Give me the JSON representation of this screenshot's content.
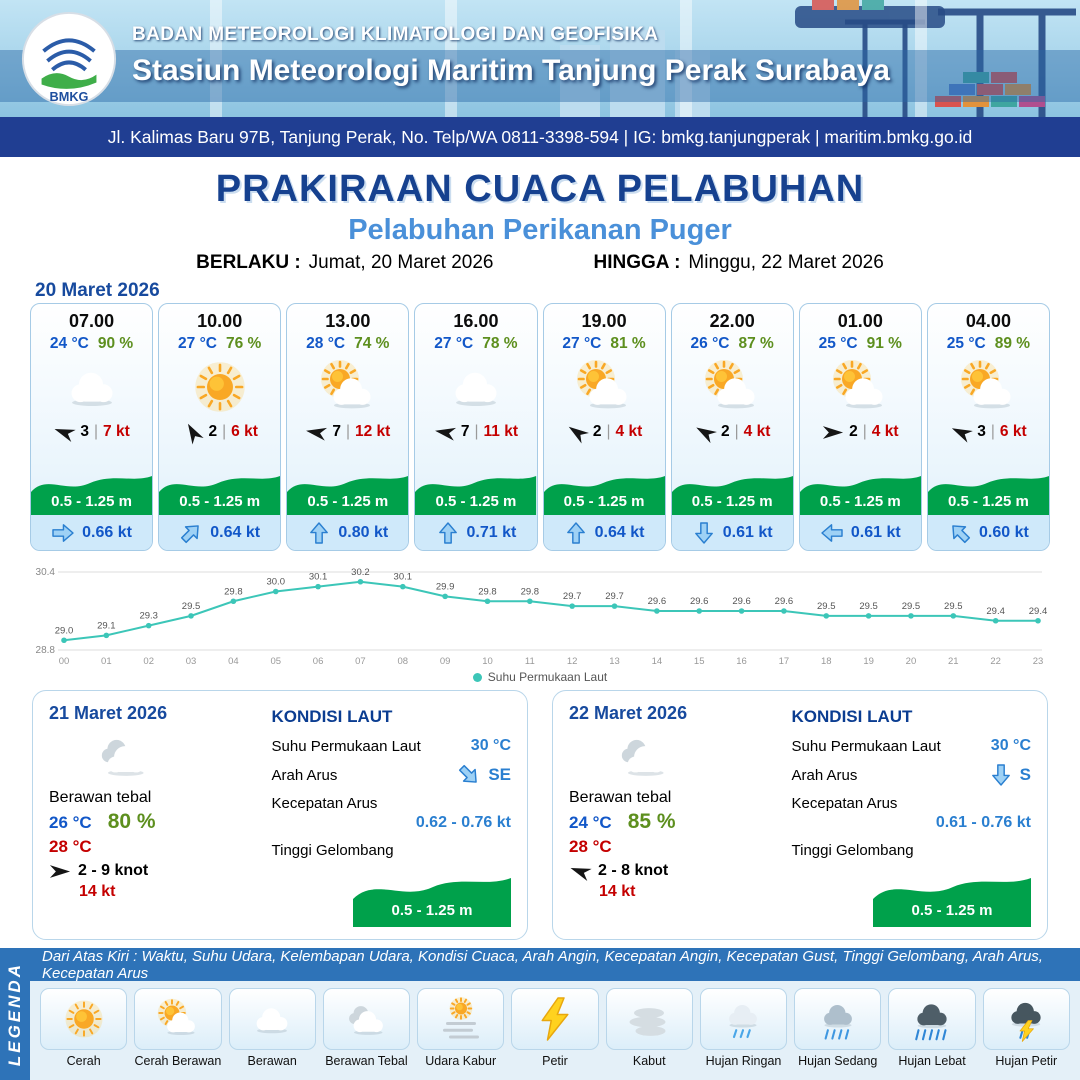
{
  "header": {
    "agency": "BADAN METEOROLOGI KLIMATOLOGI DAN GEOFISIKA",
    "station": "Stasiun Meteorologi Maritim Tanjung Perak Surabaya",
    "address": "Jl. Kalimas Baru 97B, Tanjung Perak, No. Telp/WA 0811-3398-594 | IG: bmkg.tanjungperak | maritim.bmkg.go.id",
    "logo_text": "BMKG"
  },
  "title": {
    "main": "PRAKIRAAN CUACA PELABUHAN",
    "subtitle": "Pelabuhan Perikanan Puger",
    "valid_label": "BERLAKU :",
    "valid_value": "Jumat, 20 Maret 2026",
    "until_label": "HINGGA :",
    "until_value": "Minggu, 22 Maret 2026"
  },
  "forecast": {
    "date": "20 Maret 2026",
    "cards": [
      {
        "time": "07.00",
        "temp": "24 °C",
        "humidity": "90 %",
        "icon": "berawan",
        "wind_dir_deg": 200,
        "wind": "3",
        "sep": "|",
        "gust": "7 kt",
        "wave": "0.5 - 1.25 m",
        "current_dir_deg": 0,
        "current": "0.66 kt"
      },
      {
        "time": "10.00",
        "temp": "27 °C",
        "humidity": "76 %",
        "icon": "cerah",
        "wind_dir_deg": 240,
        "wind": "2",
        "sep": "|",
        "gust": "6 kt",
        "wave": "0.5 - 1.25 m",
        "current_dir_deg": -45,
        "current": "0.64 kt"
      },
      {
        "time": "13.00",
        "temp": "28 °C",
        "humidity": "74 %",
        "icon": "cerah-berawan",
        "wind_dir_deg": 190,
        "wind": "7",
        "sep": "|",
        "gust": "12 kt",
        "wave": "0.5 - 1.25 m",
        "current_dir_deg": -90,
        "current": "0.80 kt"
      },
      {
        "time": "16.00",
        "temp": "27 °C",
        "humidity": "78 %",
        "icon": "berawan",
        "wind_dir_deg": 190,
        "wind": "7",
        "sep": "|",
        "gust": "11 kt",
        "wave": "0.5 - 1.25 m",
        "current_dir_deg": -90,
        "current": "0.71 kt"
      },
      {
        "time": "19.00",
        "temp": "27 °C",
        "humidity": "81 %",
        "icon": "cerah-berawan",
        "wind_dir_deg": 215,
        "wind": "2",
        "sep": "|",
        "gust": "4 kt",
        "wave": "0.5 - 1.25 m",
        "current_dir_deg": -90,
        "current": "0.64 kt"
      },
      {
        "time": "22.00",
        "temp": "26 °C",
        "humidity": "87 %",
        "icon": "cerah-berawan",
        "wind_dir_deg": 210,
        "wind": "2",
        "sep": "|",
        "gust": "4 kt",
        "wave": "0.5 - 1.25 m",
        "current_dir_deg": 90,
        "current": "0.61 kt"
      },
      {
        "time": "01.00",
        "temp": "25 °C",
        "humidity": "91 %",
        "icon": "cerah-berawan",
        "wind_dir_deg": 0,
        "wind": "2",
        "sep": "|",
        "gust": "4 kt",
        "wave": "0.5 - 1.25 m",
        "current_dir_deg": 180,
        "current": "0.61 kt"
      },
      {
        "time": "04.00",
        "temp": "25 °C",
        "humidity": "89 %",
        "icon": "cerah-berawan",
        "wind_dir_deg": 205,
        "wind": "3",
        "sep": "|",
        "gust": "6 kt",
        "wave": "0.5 - 1.25 m",
        "current_dir_deg": -135,
        "current": "0.60 kt"
      }
    ]
  },
  "chart_data": {
    "type": "line",
    "title": "",
    "series_name": "Suhu Permukaan Laut",
    "x": [
      "00",
      "01",
      "02",
      "03",
      "04",
      "05",
      "06",
      "07",
      "08",
      "09",
      "10",
      "11",
      "12",
      "13",
      "14",
      "15",
      "16",
      "17",
      "18",
      "19",
      "20",
      "21",
      "22",
      "23"
    ],
    "values": [
      29.0,
      29.1,
      29.3,
      29.5,
      29.8,
      30.0,
      30.1,
      30.2,
      30.1,
      29.9,
      29.8,
      29.8,
      29.7,
      29.7,
      29.6,
      29.6,
      29.6,
      29.6,
      29.5,
      29.5,
      29.5,
      29.5,
      29.4,
      29.4
    ],
    "ylim": [
      28.8,
      30.4
    ],
    "line_color": "#3cc6b8",
    "grid": true,
    "legend_position": "bottom"
  },
  "days": [
    {
      "date": "21 Maret 2026",
      "icon": "berawan-tebal",
      "condition": "Berawan tebal",
      "temp_min": "26 °C",
      "humidity": "80 %",
      "temp_max": "28 °C",
      "wind_dir_deg": 0,
      "wind": "2  - 9 knot",
      "gust": "14 kt",
      "sea": {
        "title": "KONDISI LAUT",
        "sst_label": "Suhu Permukaan Laut",
        "sst": "30 °C",
        "current_dir_label": "Arah Arus",
        "current_dir_deg": 45,
        "current_dir": "SE",
        "current_speed_label": "Kecepatan Arus",
        "current_speed": "0.62  - 0.76 kt",
        "wave_label": "Tinggi Gelombang",
        "wave": "0.5 - 1.25 m"
      }
    },
    {
      "date": "22 Maret 2026",
      "icon": "berawan-tebal",
      "condition": "Berawan tebal",
      "temp_min": "24 °C",
      "humidity": "85 %",
      "temp_max": "28 °C",
      "wind_dir_deg": 200,
      "wind": "2  - 8 knot",
      "gust": "14 kt",
      "sea": {
        "title": "KONDISI LAUT",
        "sst_label": "Suhu Permukaan Laut",
        "sst": "30 °C",
        "current_dir_label": "Arah Arus",
        "current_dir_deg": 90,
        "current_dir": "S",
        "current_speed_label": "Kecepatan Arus",
        "current_speed": "0.61  - 0.76 kt",
        "wave_label": "Tinggi Gelombang",
        "wave": "0.5 - 1.25 m"
      }
    }
  ],
  "legend": {
    "sidebar": "LEGENDA",
    "note": "Dari Atas Kiri : Waktu, Suhu Udara, Kelembapan Udara, Kondisi Cuaca, Arah Angin, Kecepatan Angin, Kecepatan Gust, Tinggi Gelombang, Arah Arus, Kecepatan Arus",
    "items": [
      {
        "label": "Cerah",
        "icon": "cerah"
      },
      {
        "label": "Cerah Berawan",
        "icon": "cerah-berawan"
      },
      {
        "label": "Berawan",
        "icon": "berawan"
      },
      {
        "label": "Berawan Tebal",
        "icon": "berawan-tebal"
      },
      {
        "label": "Udara Kabur",
        "icon": "udara-kabur"
      },
      {
        "label": "Petir",
        "icon": "petir"
      },
      {
        "label": "Kabut",
        "icon": "kabut"
      },
      {
        "label": "Hujan Ringan",
        "icon": "hujan-ringan"
      },
      {
        "label": "Hujan Sedang",
        "icon": "hujan-sedang"
      },
      {
        "label": "Hujan Lebat",
        "icon": "hujan-lebat"
      },
      {
        "label": "Hujan Petir",
        "icon": "hujan-petir"
      }
    ]
  },
  "colors": {
    "primary_blue": "#174a9e",
    "accent_blue": "#2a7fd0",
    "value_blue": "#1257c8",
    "light_blue_strip": "#cfe9fa",
    "green_wave": "#00a14b",
    "humidity_green": "#5d8f1e",
    "alert_red": "#c40000",
    "teal_line": "#3cc6b8",
    "header_band": "#203e92",
    "legend_bar": "#2e73b8"
  }
}
